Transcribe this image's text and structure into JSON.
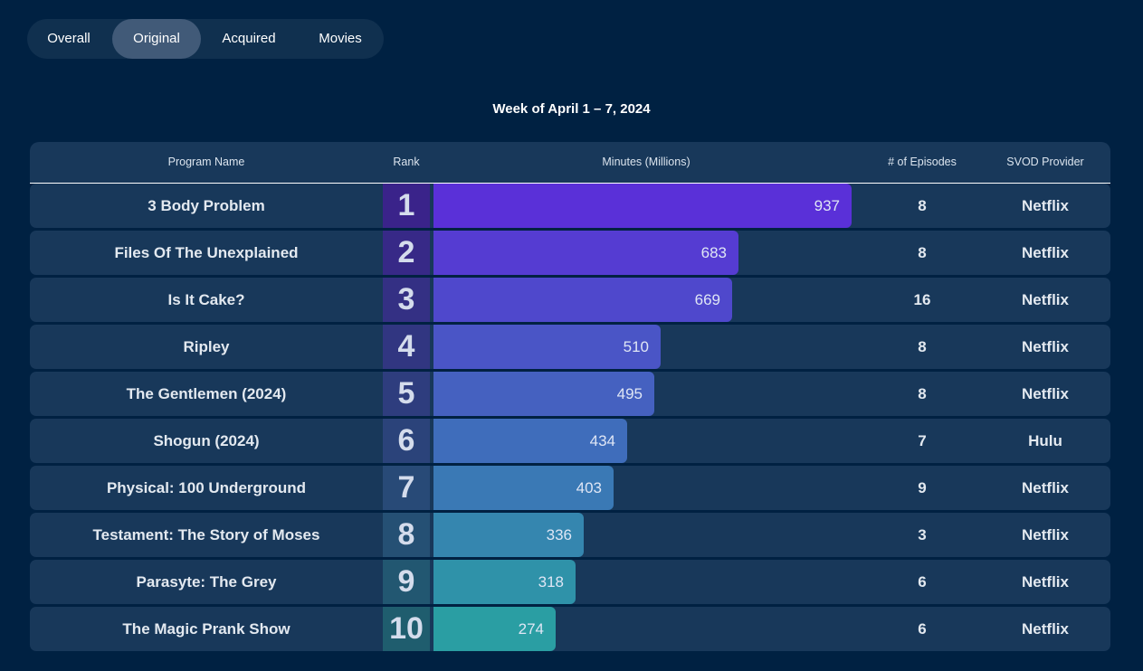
{
  "tabs": [
    {
      "label": "Overall"
    },
    {
      "label": "Original"
    },
    {
      "label": "Acquired"
    },
    {
      "label": "Movies"
    }
  ],
  "active_tab": "Original",
  "title": "Week of April 1 – 7, 2024",
  "columns": {
    "program": "Program Name",
    "rank": "Rank",
    "minutes": "Minutes (Millions)",
    "episodes": "# of Episodes",
    "provider": "SVOD Provider"
  },
  "rows": [
    {
      "program": "3 Body Problem",
      "rank": "1",
      "minutes": "937",
      "episodes": "8",
      "provider": "Netflix"
    },
    {
      "program": "Files Of The Unexplained",
      "rank": "2",
      "minutes": "683",
      "episodes": "8",
      "provider": "Netflix"
    },
    {
      "program": "Is It Cake?",
      "rank": "3",
      "minutes": "669",
      "episodes": "16",
      "provider": "Netflix"
    },
    {
      "program": "Ripley",
      "rank": "4",
      "minutes": "510",
      "episodes": "8",
      "provider": "Netflix"
    },
    {
      "program": "The Gentlemen (2024)",
      "rank": "5",
      "minutes": "495",
      "episodes": "8",
      "provider": "Netflix"
    },
    {
      "program": "Shogun (2024)",
      "rank": "6",
      "minutes": "434",
      "episodes": "7",
      "provider": "Hulu"
    },
    {
      "program": "Physical: 100 Underground",
      "rank": "7",
      "minutes": "403",
      "episodes": "9",
      "provider": "Netflix"
    },
    {
      "program": "Testament: The Story of Moses",
      "rank": "8",
      "minutes": "336",
      "episodes": "3",
      "provider": "Netflix"
    },
    {
      "program": "Parasyte: The Grey",
      "rank": "9",
      "minutes": "318",
      "episodes": "6",
      "provider": "Netflix"
    },
    {
      "program": "The Magic Prank Show",
      "rank": "10",
      "minutes": "274",
      "episodes": "6",
      "provider": "Netflix"
    }
  ],
  "chart_data": {
    "type": "bar",
    "orientation": "horizontal",
    "title": "Week of April 1 – 7, 2024",
    "categories": [
      "3 Body Problem",
      "Files Of The Unexplained",
      "Is It Cake?",
      "Ripley",
      "The Gentlemen (2024)",
      "Shogun (2024)",
      "Physical: 100 Underground",
      "Testament: The Story of Moses",
      "Parasyte: The Grey",
      "The Magic Prank Show"
    ],
    "values": [
      937,
      683,
      669,
      510,
      495,
      434,
      403,
      336,
      318,
      274
    ],
    "ylabel": "Minutes (Millions)",
    "grid": false,
    "colors": {
      "bar_start": "#5a30d8",
      "bar_end": "#2a9ea3",
      "rank_start": "#3a238a",
      "rank_end": "#1f5d6e"
    }
  }
}
